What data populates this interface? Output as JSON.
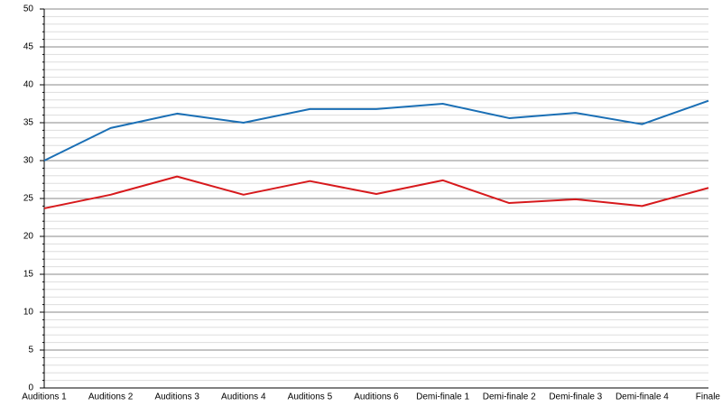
{
  "chart_data": {
    "type": "line",
    "categories": [
      "Auditions 1",
      "Auditions 2",
      "Auditions 3",
      "Auditions 4",
      "Auditions 5",
      "Auditions 6",
      "Demi-finale 1",
      "Demi-finale 2",
      "Demi-finale 3",
      "Demi-finale 4",
      "Finale"
    ],
    "series": [
      {
        "color": "#1a6fb5",
        "values": [
          30.0,
          34.3,
          36.2,
          35.0,
          36.8,
          36.8,
          37.5,
          35.6,
          36.3,
          34.8,
          37.9
        ]
      },
      {
        "color": "#d7191c",
        "values": [
          23.7,
          25.5,
          27.9,
          25.5,
          27.3,
          25.6,
          27.4,
          24.4,
          24.9,
          24.0,
          26.4
        ]
      }
    ],
    "ylim": [
      0,
      50
    ],
    "yticks": [
      0,
      5,
      10,
      15,
      20,
      25,
      30,
      35,
      40,
      45,
      50
    ],
    "yminorticks": [
      1,
      2,
      3,
      4,
      6,
      7,
      8,
      9,
      11,
      12,
      13,
      14,
      16,
      17,
      18,
      19,
      21,
      22,
      23,
      24,
      26,
      27,
      28,
      29,
      31,
      32,
      33,
      34,
      36,
      37,
      38,
      39,
      41,
      42,
      43,
      44,
      46,
      47,
      48,
      49
    ],
    "grid": true
  }
}
